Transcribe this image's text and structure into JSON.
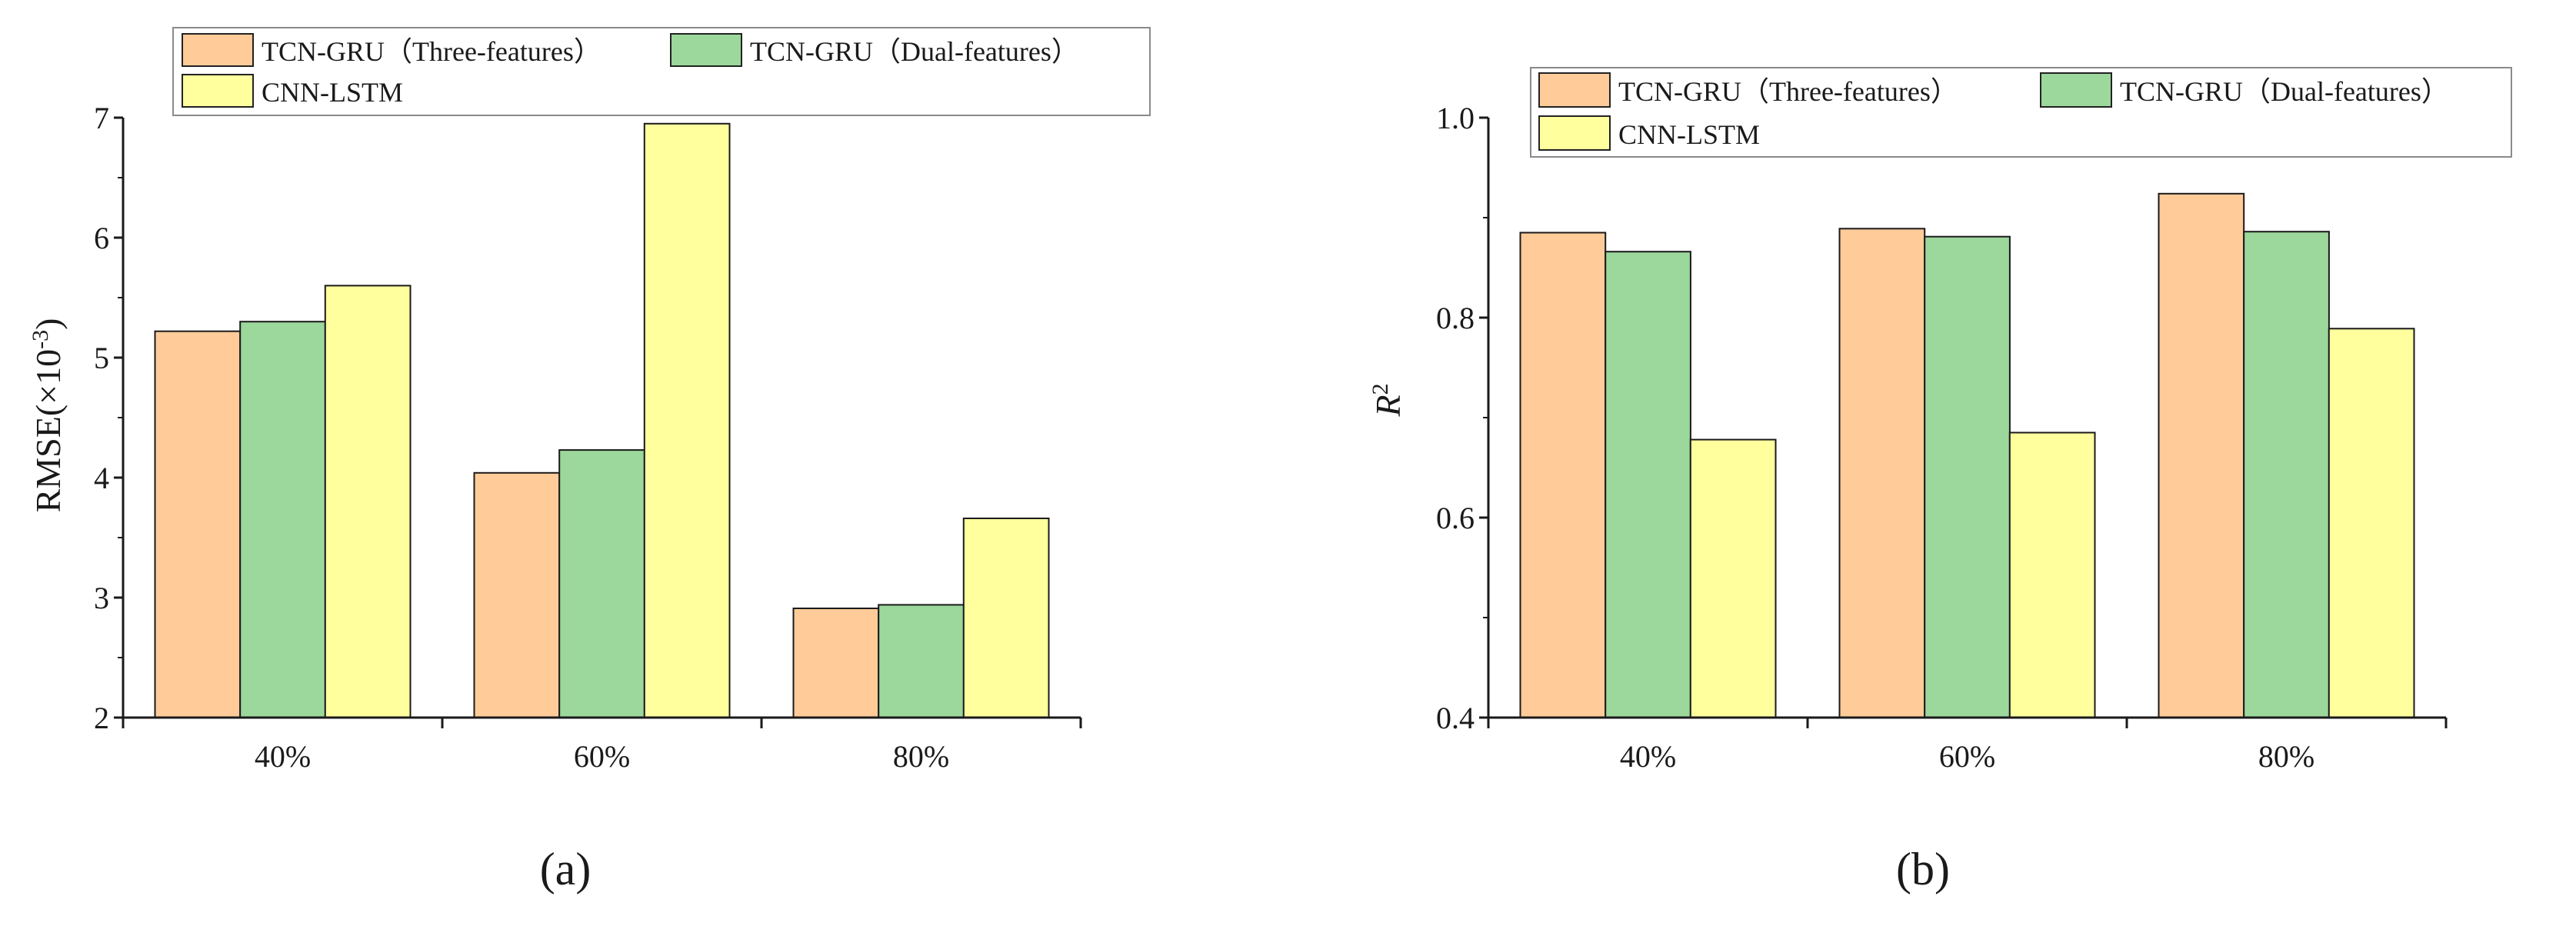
{
  "chart_data": [
    {
      "type": "bar",
      "panel_label": "(a)",
      "categories": [
        "40%",
        "60%",
        "80%"
      ],
      "series": [
        {
          "name": "TCN-GRU（Three-features）",
          "color": "#FECB99",
          "values": [
            5.22,
            4.04,
            2.91
          ]
        },
        {
          "name": "TCN-GRU（Dual-features）",
          "color": "#9CD79C",
          "values": [
            5.3,
            4.23,
            2.94
          ]
        },
        {
          "name": "CNN-LSTM",
          "color": "#FFFF9E",
          "values": [
            5.6,
            6.95,
            3.66
          ]
        }
      ],
      "ylabel": "RMSE(×10",
      "ylabel_exponent": "-3",
      "ylabel_close": ")",
      "ylim": [
        2,
        7
      ],
      "yticks": [
        "2",
        "3",
        "4",
        "5",
        "6",
        "7"
      ],
      "legend_position": "top",
      "grid": false
    },
    {
      "type": "bar",
      "panel_label": "(b)",
      "categories": [
        "40%",
        "60%",
        "80%"
      ],
      "series": [
        {
          "name": "TCN-GRU（Three-features）",
          "color": "#FECB99",
          "values": [
            0.885,
            0.889,
            0.924
          ]
        },
        {
          "name": "TCN-GRU（Dual-features）",
          "color": "#9CD79C",
          "values": [
            0.866,
            0.881,
            0.886
          ]
        },
        {
          "name": "CNN-LSTM",
          "color": "#FFFF9E",
          "values": [
            0.678,
            0.685,
            0.789
          ]
        }
      ],
      "ylabel": "R",
      "ylabel_exponent": "2",
      "ylim": [
        0.4,
        1.0
      ],
      "yticks": [
        "0.4",
        "0.6",
        "0.8",
        "1.0"
      ],
      "legend_position": "top",
      "grid": false
    }
  ]
}
